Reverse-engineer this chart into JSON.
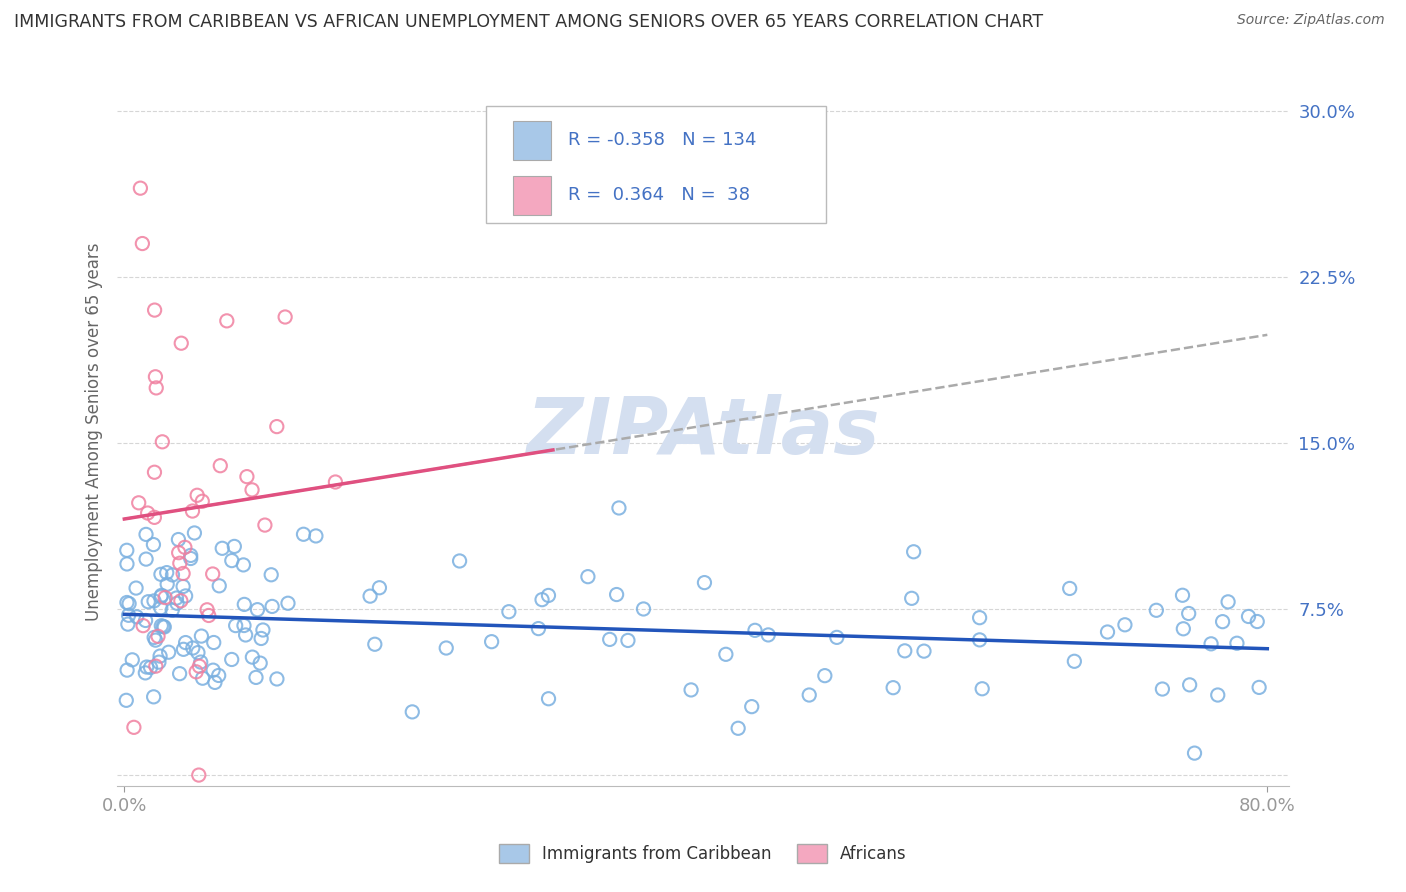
{
  "title": "IMMIGRANTS FROM CARIBBEAN VS AFRICAN UNEMPLOYMENT AMONG SENIORS OVER 65 YEARS CORRELATION CHART",
  "source": "Source: ZipAtlas.com",
  "ylabel": "Unemployment Among Seniors over 65 years",
  "legend_entry1_label": "Immigrants from Caribbean",
  "legend_entry1_R": "-0.358",
  "legend_entry1_N": "134",
  "legend_entry1_color": "#a8c8e8",
  "legend_entry2_label": "Africans",
  "legend_entry2_R": "0.364",
  "legend_entry2_N": "38",
  "legend_entry2_color": "#f4a8c0",
  "scatter_color1": "#7ab0e0",
  "scatter_color2": "#f080a0",
  "trendline1_color": "#2255bb",
  "trendline2_color": "#e05080",
  "trendline_dash_color": "#aaaaaa",
  "watermark": "ZIPAtlas",
  "watermark_color": "#d4dff0",
  "background_color": "#ffffff",
  "title_color": "#333333",
  "axis_label_color": "#666666",
  "tick_label_color": "#4472c4",
  "R_value_color": "#4472c4",
  "legend_text_color": "#222222"
}
